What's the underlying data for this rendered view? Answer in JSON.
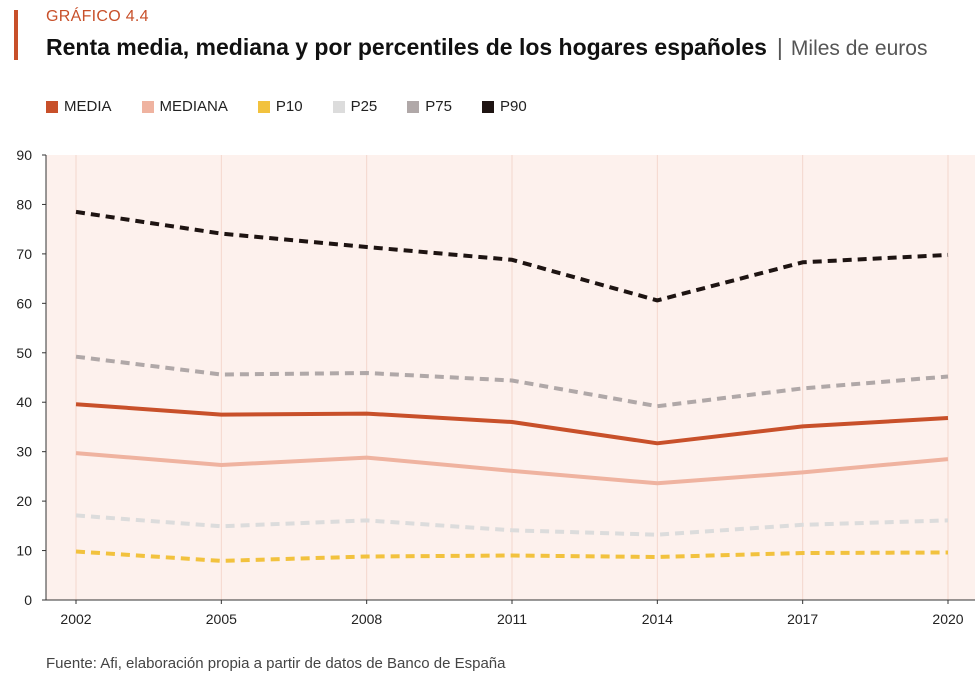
{
  "header": {
    "kicker": "GRÁFICO 4.4",
    "title": "Renta media, mediana y por percentiles de los hogares españoles",
    "separator": "|",
    "unit": "Miles de euros"
  },
  "source": "Fuente: Afi, elaboración propia a partir de datos de Banco de España",
  "colors": {
    "accent": "#c8502a",
    "plot_background": "#fdf1ed",
    "grid": "#f4d7cd"
  },
  "chart_data": {
    "type": "line",
    "title": "Renta media, mediana y por percentiles de los hogares españoles",
    "ylabel": "Miles de euros",
    "xlabel": "",
    "x": [
      "2002",
      "2005",
      "2008",
      "2011",
      "2014",
      "2017",
      "2020"
    ],
    "ylim": [
      0,
      90
    ],
    "yticks": [
      0,
      10,
      20,
      30,
      40,
      50,
      60,
      70,
      80,
      90
    ],
    "grid": "vertical",
    "legend_position": "top-left",
    "series": [
      {
        "name": "MEDIA",
        "color": "#c8502a",
        "dashed": false,
        "values": [
          39.6,
          37.5,
          37.7,
          36.0,
          31.7,
          35.1,
          36.8
        ]
      },
      {
        "name": "MEDIANA",
        "color": "#efb3a0",
        "dashed": false,
        "values": [
          29.7,
          27.3,
          28.8,
          26.1,
          23.6,
          25.8,
          28.5
        ]
      },
      {
        "name": "P10",
        "color": "#f2c23e",
        "dashed": true,
        "values": [
          9.8,
          7.9,
          8.8,
          9.0,
          8.7,
          9.5,
          9.6
        ]
      },
      {
        "name": "P25",
        "color": "#dcdcdc",
        "dashed": true,
        "values": [
          17.1,
          14.9,
          16.1,
          14.1,
          13.2,
          15.2,
          16.1
        ]
      },
      {
        "name": "P75",
        "color": "#b0a8a8",
        "dashed": true,
        "values": [
          49.2,
          45.6,
          45.9,
          44.4,
          39.2,
          42.8,
          45.2
        ]
      },
      {
        "name": "P90",
        "color": "#1e1412",
        "dashed": true,
        "values": [
          78.5,
          74.1,
          71.4,
          68.8,
          60.6,
          68.3,
          69.8
        ]
      }
    ]
  }
}
